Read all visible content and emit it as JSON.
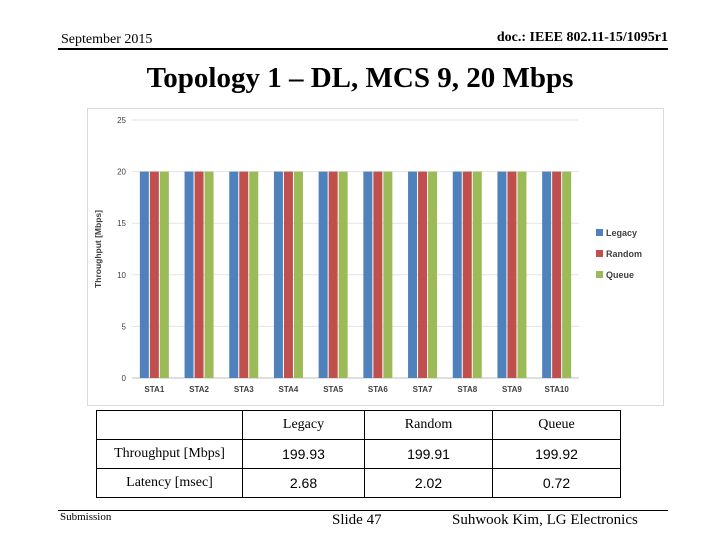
{
  "header": {
    "date": "September 2015",
    "doc_id": "doc.: IEEE 802.11-15/1095r1"
  },
  "title": "Topology 1 – DL, MCS 9, 20 Mbps",
  "chart_data": {
    "type": "bar",
    "categories": [
      "STA1",
      "STA2",
      "STA3",
      "STA4",
      "STA5",
      "STA6",
      "STA7",
      "STA8",
      "STA9",
      "STA10"
    ],
    "series": [
      {
        "name": "Legacy",
        "color": "#4f81bd",
        "values": [
          20,
          20,
          20,
          20,
          20,
          20,
          20,
          20,
          20,
          20
        ]
      },
      {
        "name": "Random",
        "color": "#c0504d",
        "values": [
          20,
          20,
          20,
          20,
          20,
          20,
          20,
          20,
          20,
          20
        ]
      },
      {
        "name": "Queue",
        "color": "#9bbb59",
        "values": [
          20,
          20,
          20,
          20,
          20,
          20,
          20,
          20,
          20,
          20
        ]
      }
    ],
    "ylabel": "Throughput [Mbps]",
    "ylim": [
      0,
      25
    ],
    "yticks": [
      0,
      5,
      10,
      15,
      20,
      25
    ],
    "grid": true,
    "legend": "right"
  },
  "table": {
    "headers": [
      "",
      "Legacy",
      "Random",
      "Queue"
    ],
    "rows": [
      {
        "label": "Throughput [Mbps]",
        "values": [
          "199.93",
          "199.91",
          "199.92"
        ]
      },
      {
        "label": "Latency [msec]",
        "values": [
          "2.68",
          "2.02",
          "0.72"
        ]
      }
    ]
  },
  "footer": {
    "left": "Submission",
    "slide": "Slide 47",
    "author": "Suhwook Kim, LG Electronics"
  }
}
